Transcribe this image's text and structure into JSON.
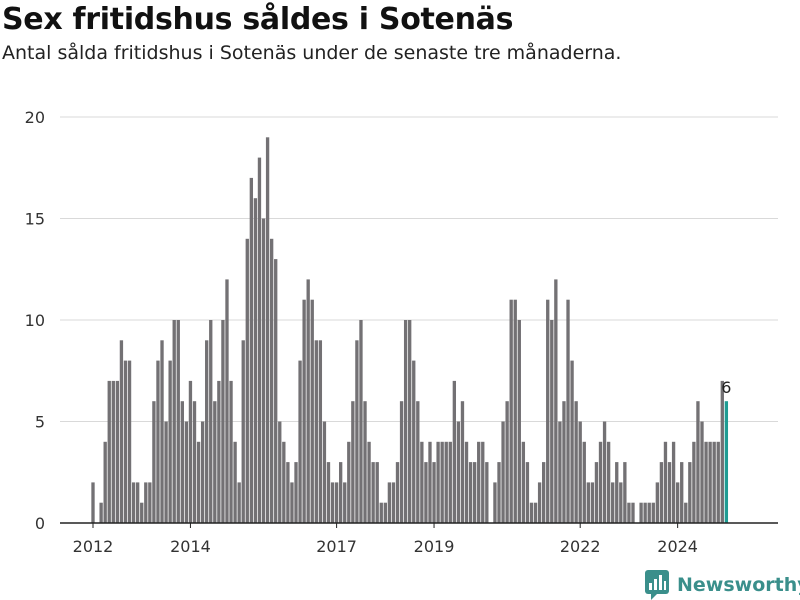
{
  "header": {
    "title": "Sex fritidshus såldes i Sotenäs",
    "subtitle": "Antal sålda fritidshus i Sotenäs under de senaste tre månaderna."
  },
  "brand": {
    "label": "Newsworthy",
    "icon": "newsworthy-logo-icon",
    "color": "#3a8f8b"
  },
  "colors": {
    "bar": "#737174",
    "highlight": "#1f9c93",
    "grid": "#d9d9d9",
    "axis": "#222222"
  },
  "chart_data": {
    "type": "bar",
    "ylim": [
      0,
      20
    ],
    "yticks": [
      0,
      5,
      10,
      15,
      20
    ],
    "xtick_labels": [
      {
        "label": "2012",
        "index": 0
      },
      {
        "label": "2014",
        "index": 24
      },
      {
        "label": "2017",
        "index": 60
      },
      {
        "label": "2019",
        "index": 84
      },
      {
        "label": "2022",
        "index": 120
      },
      {
        "label": "2024",
        "index": 144
      }
    ],
    "values": [
      2,
      0,
      1,
      4,
      7,
      7,
      7,
      9,
      8,
      8,
      2,
      2,
      1,
      2,
      2,
      6,
      8,
      9,
      5,
      8,
      10,
      10,
      6,
      5,
      7,
      6,
      4,
      5,
      9,
      10,
      6,
      7,
      10,
      12,
      7,
      4,
      2,
      9,
      14,
      17,
      16,
      18,
      15,
      19,
      14,
      13,
      5,
      4,
      3,
      2,
      3,
      8,
      11,
      12,
      11,
      9,
      9,
      5,
      3,
      2,
      2,
      3,
      2,
      4,
      6,
      9,
      10,
      6,
      4,
      3,
      3,
      1,
      1,
      2,
      2,
      3,
      6,
      10,
      10,
      8,
      6,
      4,
      3,
      4,
      3,
      4,
      4,
      4,
      4,
      7,
      5,
      6,
      4,
      3,
      3,
      4,
      4,
      3,
      0,
      2,
      3,
      5,
      6,
      11,
      11,
      10,
      4,
      3,
      1,
      1,
      2,
      3,
      11,
      10,
      12,
      5,
      6,
      11,
      8,
      6,
      5,
      4,
      2,
      2,
      3,
      4,
      5,
      4,
      2,
      3,
      2,
      3,
      1,
      1,
      0,
      1,
      1,
      1,
      1,
      2,
      3,
      4,
      3,
      4,
      2,
      3,
      1,
      3,
      4,
      6,
      5,
      4,
      4,
      4,
      4,
      7,
      6
    ],
    "highlight_index": 156,
    "highlight_label": "6"
  }
}
